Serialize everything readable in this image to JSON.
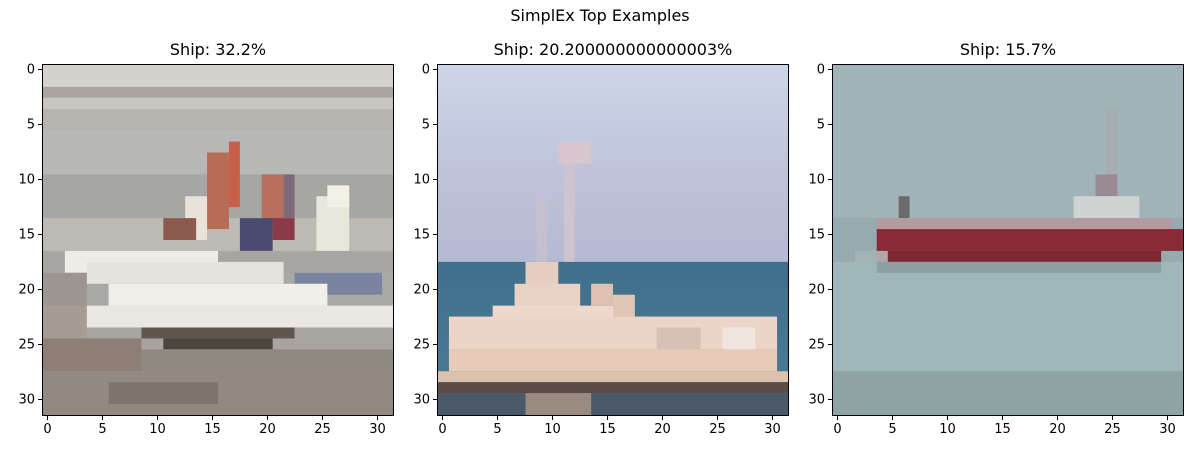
{
  "figure": {
    "title": "SimplEx Top Examples"
  },
  "panels": [
    {
      "title": "Ship: 32.2%",
      "icon": "speedboat-photo"
    },
    {
      "title": "Ship: 20.200000000000003%",
      "icon": "fishing-boat-photo"
    },
    {
      "title": "Ship: 15.7%",
      "icon": "cargo-ship-photo"
    }
  ],
  "axes": {
    "x_ticks": [
      "0",
      "5",
      "10",
      "15",
      "20",
      "25",
      "30"
    ],
    "y_ticks": [
      "0",
      "5",
      "10",
      "15",
      "20",
      "25",
      "30"
    ],
    "x_range": [
      -0.5,
      31.5
    ],
    "y_range": [
      -0.5,
      31.5
    ]
  }
}
